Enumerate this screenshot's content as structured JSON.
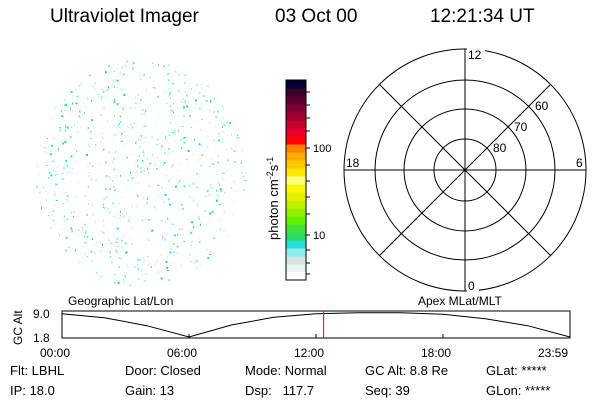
{
  "header": {
    "instrument": "Ultraviolet Imager",
    "date": "03 Oct 00",
    "time": "12:21:34 UT"
  },
  "colorbar": {
    "label": "photon cm",
    "label_exp1": "-2",
    "label_mid": "s",
    "label_exp2": "-1",
    "ticks": [
      "100",
      "10"
    ],
    "colors": [
      "#ffffff",
      "#eaf4ee",
      "#d4e4e4",
      "#8ceef0",
      "#28e0d8",
      "#28dc64",
      "#46e03c",
      "#64f000",
      "#96f000",
      "#c4f000",
      "#e6f000",
      "#f8f800",
      "#ffff80",
      "#ffe600",
      "#ffc800",
      "#ffaa00",
      "#ff8200",
      "#ff0000",
      "#e60028",
      "#c8002c",
      "#a00032",
      "#820032",
      "#5a0032",
      "#3c0028",
      "#000032"
    ]
  },
  "polar_plot": {
    "mlt_labels": {
      "top": "12",
      "bottom": "0",
      "left": "18",
      "right": "6"
    },
    "lat_labels": [
      "60",
      "70",
      "80"
    ]
  },
  "timeline": {
    "left_caption": "Geographic Lat/Lon",
    "right_caption": "Apex MLat/MLT",
    "ylabel": "GC Alt",
    "y_ticks": [
      "9.0",
      "1.8"
    ],
    "x_ticks": [
      "00:00",
      "06:00",
      "12:00",
      "18:00",
      "23:59"
    ],
    "current_time_hours": 12.36,
    "marker_color": "#ff0000",
    "altitude_curve": {
      "hours": [
        0,
        2,
        4,
        6,
        8,
        10,
        12,
        14,
        15,
        16,
        18,
        20,
        22,
        24
      ],
      "re": [
        8.8,
        7.6,
        5.2,
        1.8,
        5.4,
        7.7,
        8.8,
        9.1,
        9.1,
        9.1,
        8.6,
        7.3,
        5.2,
        1.8
      ]
    }
  },
  "status": {
    "filter": "Flt: LBHL",
    "ip": "IP: 18.0",
    "door": "Door: Closed",
    "gain": "Gain: 13",
    "mode": "Mode: Normal",
    "dsp": "Dsp:   117.7",
    "gc_alt": "GC Alt: 8.8 Re",
    "seq": "Seq: 39",
    "glat": "GLat: *****",
    "glon": "GLon: *****"
  }
}
